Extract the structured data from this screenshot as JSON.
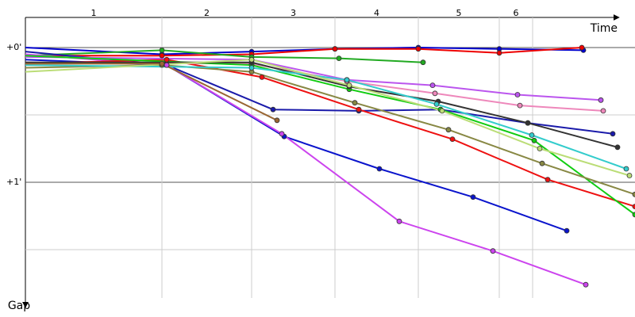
{
  "chart_data": {
    "type": "line",
    "x_label": "Time",
    "y_label": "Gap",
    "xlim": [
      0,
      768
    ],
    "ylim": [
      0,
      1.85
    ],
    "y_inverted": true,
    "yticks": [
      {
        "value": 0,
        "label": "+0'"
      },
      {
        "value": 1,
        "label": "+1'"
      }
    ],
    "minor_yticks": [
      0.5,
      1.5
    ],
    "lap_labels": [
      "1",
      "2",
      "3",
      "4",
      "5",
      "6"
    ],
    "lap_lines": [
      172,
      285,
      390,
      495,
      597,
      639
    ],
    "series": [
      {
        "color": "#0000cc",
        "x": [
          0,
          172,
          285,
          390,
          495,
          597,
          703
        ],
        "y": [
          0,
          0.05,
          0.03,
          0.01,
          0,
          0.01,
          0.02
        ]
      },
      {
        "color": "#ee0000",
        "x": [
          0,
          172,
          285,
          390,
          495,
          597,
          701
        ],
        "y": [
          0.06,
          0.06,
          0.05,
          0.01,
          0.01,
          0.04,
          0
        ]
      },
      {
        "color": "#22aa22",
        "x": [
          0,
          172,
          285,
          395,
          501
        ],
        "y": [
          0.06,
          0.02,
          0.07,
          0.08,
          0.11
        ]
      },
      {
        "color": "#1a1aaa",
        "x": [
          0,
          178,
          312,
          420,
          523,
          633,
          740
        ],
        "y": [
          0.03,
          0.13,
          0.46,
          0.47,
          0.46,
          0.56,
          0.64
        ]
      },
      {
        "color": "#0a14cc",
        "x": [
          0,
          178,
          326,
          446,
          564,
          682
        ],
        "y": [
          0.09,
          0.13,
          0.66,
          0.9,
          1.11,
          1.36
        ]
      },
      {
        "color": "#cc44ee",
        "x": [
          0,
          178,
          323,
          471,
          589,
          706
        ],
        "y": [
          0.05,
          0.13,
          0.64,
          1.29,
          1.51,
          1.76
        ]
      },
      {
        "color": "#ee1111",
        "x": [
          0,
          178,
          298,
          420,
          538,
          658,
          768
        ],
        "y": [
          0.12,
          0.09,
          0.22,
          0.46,
          0.68,
          0.98,
          1.18
        ]
      },
      {
        "color": "#bb55ee",
        "x": [
          0,
          285,
          405,
          513,
          620,
          725
        ],
        "y": [
          0.07,
          0.09,
          0.24,
          0.28,
          0.35,
          0.39
        ]
      },
      {
        "color": "#ee88bb",
        "x": [
          0,
          285,
          405,
          516,
          623,
          728
        ],
        "y": [
          0.11,
          0.12,
          0.25,
          0.34,
          0.43,
          0.47
        ]
      },
      {
        "color": "#11cc11",
        "x": [
          0,
          285,
          408,
          523,
          641,
          768
        ],
        "y": [
          0.06,
          0.13,
          0.31,
          0.46,
          0.69,
          1.24
        ]
      },
      {
        "color": "#888844",
        "x": [
          0,
          172,
          285,
          415,
          533,
          651,
          768
        ],
        "y": [
          0.15,
          0.13,
          0.18,
          0.41,
          0.61,
          0.86,
          1.09
        ]
      },
      {
        "color": "#333333",
        "x": [
          0,
          285,
          408,
          520,
          633,
          746
        ],
        "y": [
          0.11,
          0.11,
          0.29,
          0.4,
          0.56,
          0.74
        ]
      },
      {
        "color": "#33cccc",
        "x": [
          0,
          285,
          405,
          518,
          638,
          757
        ],
        "y": [
          0.13,
          0.15,
          0.24,
          0.42,
          0.65,
          0.9
        ]
      },
      {
        "color": "#bbdd77",
        "x": [
          0,
          285,
          408,
          525,
          648,
          761
        ],
        "y": [
          0.18,
          0.09,
          0.28,
          0.47,
          0.75,
          0.95
        ]
      },
      {
        "color": "#996633",
        "x": [
          0,
          172,
          317
        ],
        "y": [
          0.12,
          0.12,
          0.54
        ]
      }
    ]
  }
}
